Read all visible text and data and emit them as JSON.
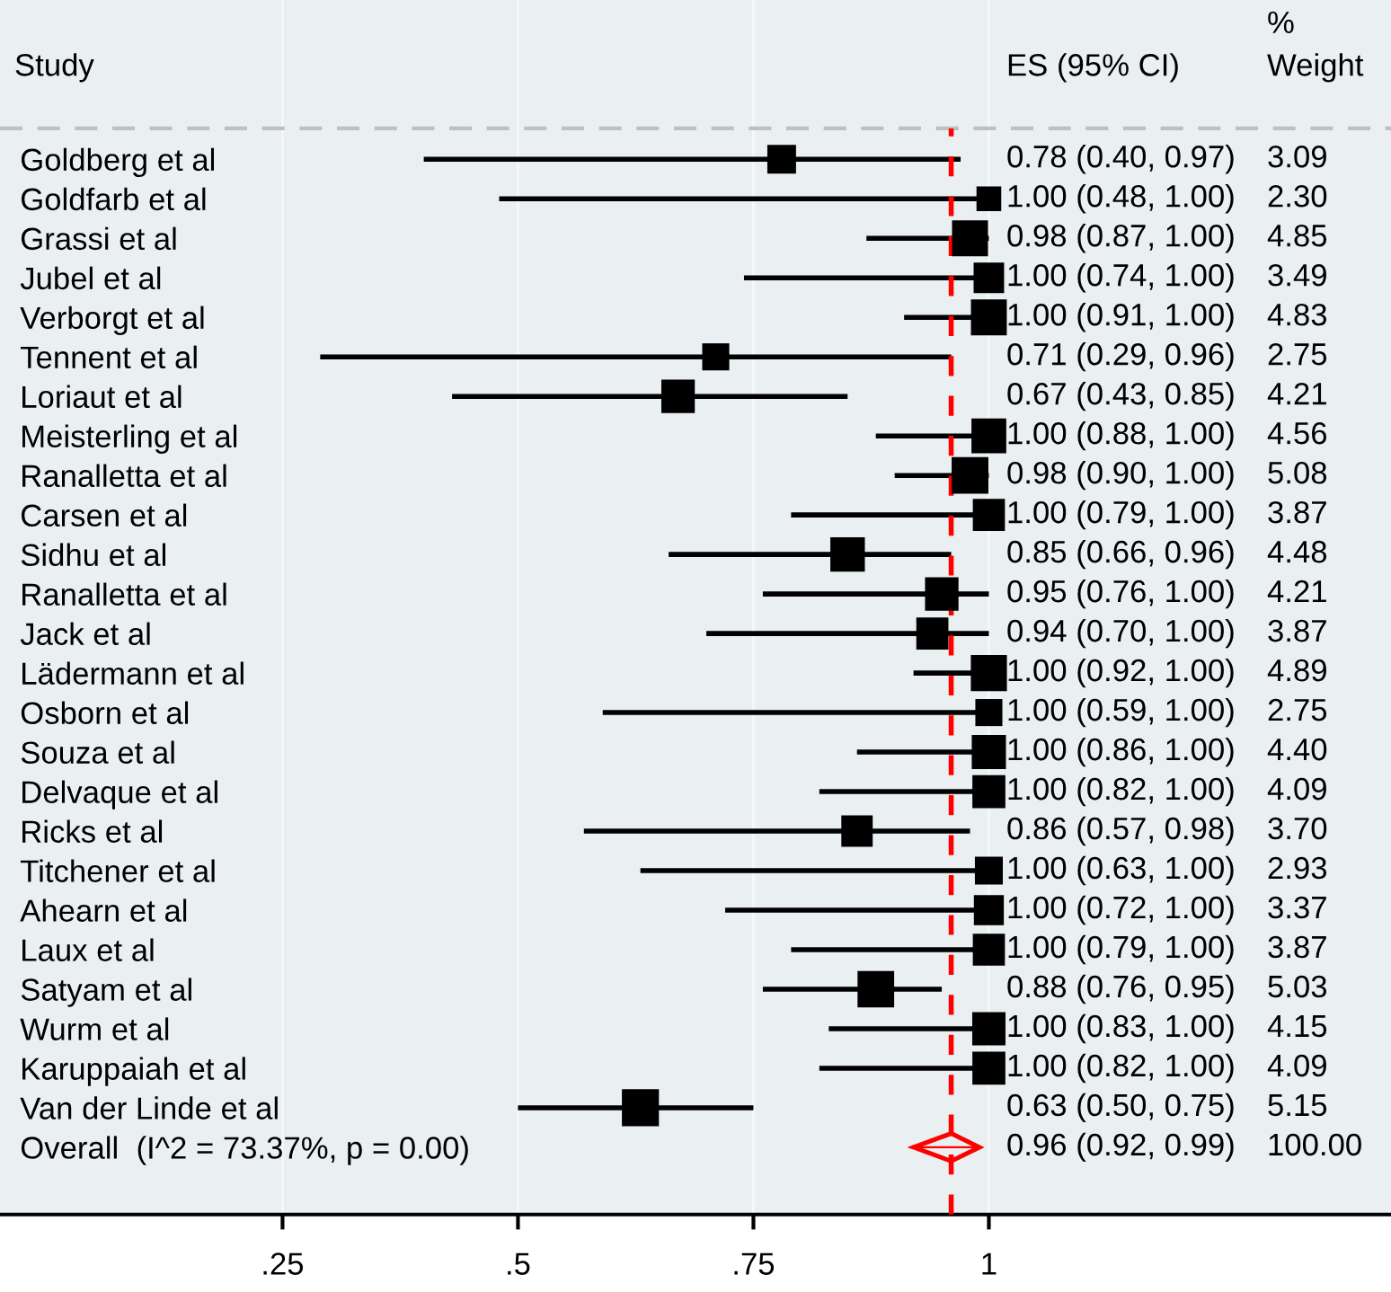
{
  "chart_data": {
    "type": "scatter",
    "orientation": "horizontal",
    "categories": [
      "Goldberg et al",
      "Goldfarb et al",
      "Grassi et al",
      "Jubel et al",
      "Verborgt et al",
      "Tennent et al",
      "Loriaut et al",
      "Meisterling et al",
      "Ranalletta et al",
      "Carsen et al",
      "Sidhu et al",
      "Ranalletta et al",
      "Jack et al",
      "Lädermann et al",
      "Osborn et al",
      "Souza et al",
      "Delvaque et al",
      "Ricks et al",
      "Titchener et al",
      "Ahearn et al",
      "Laux et al",
      "Satyam et al",
      "Wurm et al",
      "Karuppaiah et al",
      "Van der Linde et al",
      "Overall  (I^2 = 73.37%, p = 0.00)"
    ],
    "series": [
      {
        "color": "#000000",
        "marker": "square",
        "values": [
          0.78,
          1.0,
          0.98,
          1.0,
          1.0,
          0.71,
          0.67,
          1.0,
          0.98,
          1.0,
          0.85,
          0.95,
          0.94,
          1.0,
          1.0,
          1.0,
          1.0,
          0.86,
          1.0,
          1.0,
          1.0,
          0.88,
          1.0,
          1.0,
          0.63,
          null
        ],
        "errors": [
          [
            0.4,
            0.97
          ],
          [
            0.48,
            1.0
          ],
          [
            0.87,
            1.0
          ],
          [
            0.74,
            1.0
          ],
          [
            0.91,
            1.0
          ],
          [
            0.29,
            0.96
          ],
          [
            0.43,
            0.85
          ],
          [
            0.88,
            1.0
          ],
          [
            0.9,
            1.0
          ],
          [
            0.79,
            1.0
          ],
          [
            0.66,
            0.96
          ],
          [
            0.76,
            1.0
          ],
          [
            0.7,
            1.0
          ],
          [
            0.92,
            1.0
          ],
          [
            0.59,
            1.0
          ],
          [
            0.86,
            1.0
          ],
          [
            0.82,
            1.0
          ],
          [
            0.57,
            0.98
          ],
          [
            0.63,
            1.0
          ],
          [
            0.72,
            1.0
          ],
          [
            0.79,
            1.0
          ],
          [
            0.76,
            0.95
          ],
          [
            0.83,
            1.0
          ],
          [
            0.82,
            1.0
          ],
          [
            0.5,
            0.75
          ],
          null
        ],
        "sizes": [
          0.6,
          0.447,
          0.942,
          0.678,
          0.938,
          0.534,
          0.817,
          0.885,
          0.986,
          0.751,
          0.87,
          0.817,
          0.751,
          0.95,
          0.534,
          0.854,
          0.794,
          0.718,
          0.569,
          0.654,
          0.751,
          0.977,
          0.806,
          0.794,
          1,
          null
        ]
      },
      {
        "color": "#ff0000",
        "marker": "diamond",
        "values": [
          null,
          null,
          null,
          null,
          null,
          null,
          null,
          null,
          null,
          null,
          null,
          null,
          null,
          null,
          null,
          null,
          null,
          null,
          null,
          null,
          null,
          null,
          null,
          null,
          null,
          0.96
        ],
        "errors": [
          null,
          null,
          null,
          null,
          null,
          null,
          null,
          null,
          null,
          null,
          null,
          null,
          null,
          null,
          null,
          null,
          null,
          null,
          null,
          null,
          null,
          null,
          null,
          null,
          null,
          [
            0.92,
            0.99
          ]
        ]
      }
    ],
    "xlim": [
      -0.05,
      1.427
    ],
    "xticks": [
      {
        "value": 0.25,
        "label": ".25"
      },
      {
        "value": 0.5,
        "label": ".5"
      },
      {
        "value": 0.75,
        "label": ".75"
      },
      {
        "value": 1,
        "label": "1"
      }
    ],
    "grid": "x",
    "ref_lines": [
      {
        "axis": "x",
        "value": 0.96,
        "label": null,
        "color": "#ff0000",
        "line_style": "dashed"
      }
    ],
    "annotations": [
      "Study",
      "ES (95% CI)",
      "%\nWeight",
      "0.78 (0.40, 0.97)",
      "1.00 (0.48, 1.00)",
      "0.98 (0.87, 1.00)",
      "1.00 (0.74, 1.00)",
      "1.00 (0.91, 1.00)",
      "0.71 (0.29, 0.96)",
      "0.67 (0.43, 0.85)",
      "1.00 (0.88, 1.00)",
      "0.98 (0.90, 1.00)",
      "1.00 (0.79, 1.00)",
      "0.85 (0.66, 0.96)",
      "0.95 (0.76, 1.00)",
      "0.94 (0.70, 1.00)",
      "1.00 (0.92, 1.00)",
      "1.00 (0.59, 1.00)",
      "1.00 (0.86, 1.00)",
      "1.00 (0.82, 1.00)",
      "0.86 (0.57, 0.98)",
      "1.00 (0.63, 1.00)",
      "1.00 (0.72, 1.00)",
      "1.00 (0.79, 1.00)",
      "0.88 (0.76, 0.95)",
      "1.00 (0.83, 1.00)",
      "1.00 (0.82, 1.00)",
      "0.63 (0.50, 0.75)",
      "0.96 (0.92, 0.99)",
      "3.09",
      "2.30",
      "4.85",
      "3.49",
      "4.83",
      "2.75",
      "4.21",
      "4.56",
      "5.08",
      "3.87",
      "4.48",
      "4.21",
      "3.87",
      "4.89",
      "2.75",
      "4.40",
      "4.09",
      "3.70",
      "2.93",
      "3.37",
      "3.87",
      "5.03",
      "4.15",
      "4.09",
      "5.15",
      "100.00"
    ]
  }
}
